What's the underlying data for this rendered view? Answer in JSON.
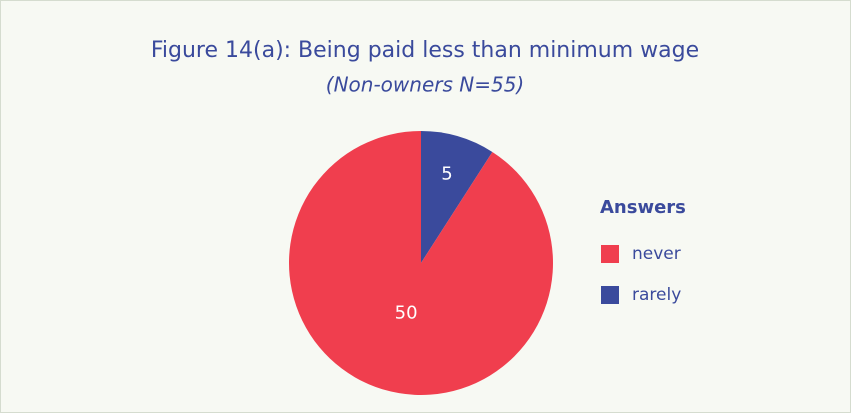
{
  "chart_data": {
    "type": "pie",
    "title": "Figure 14(a): Being paid less than minimum wage",
    "subtitle": "(Non-owners N=55)",
    "legend_title": "Answers",
    "categories": [
      "never",
      "rarely"
    ],
    "values": [
      50,
      5
    ],
    "colors": [
      "#f03e4e",
      "#3a4a9c"
    ]
  }
}
